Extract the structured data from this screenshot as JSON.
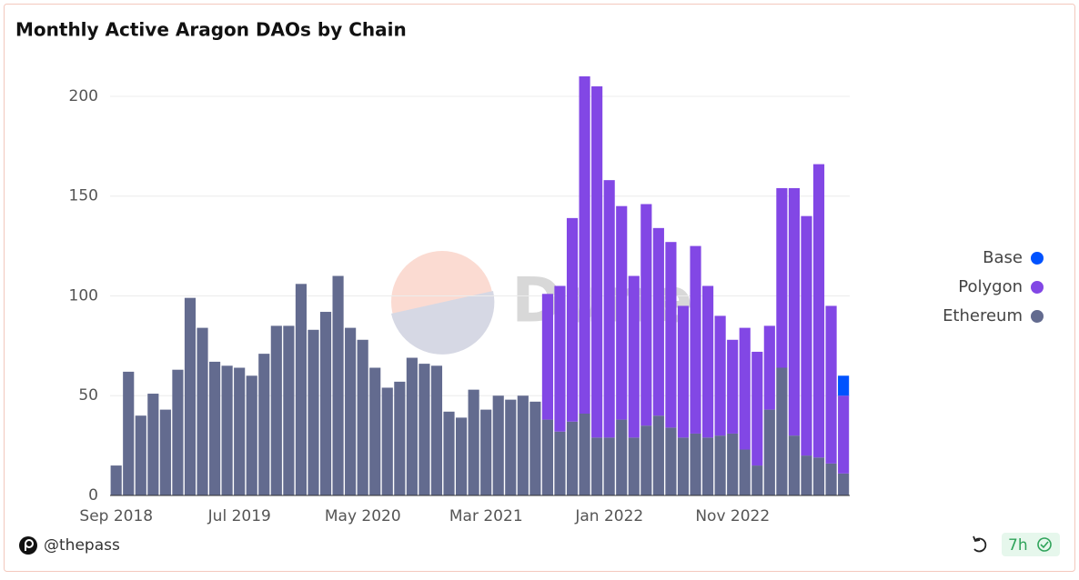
{
  "chart_data": {
    "type": "stacked_bar",
    "title": "Monthly Active Aragon DAOs by Chain",
    "watermark": "Dune",
    "categories": [
      "Sep 2018",
      null,
      null,
      null,
      null,
      null,
      null,
      null,
      null,
      null,
      "Jul 2019",
      null,
      null,
      null,
      null,
      null,
      null,
      null,
      null,
      null,
      "May 2020",
      null,
      null,
      null,
      null,
      null,
      null,
      null,
      null,
      null,
      "Mar 2021",
      null,
      null,
      null,
      null,
      null,
      null,
      null,
      null,
      null,
      "Jan 2022",
      null,
      null,
      null,
      null,
      null,
      null,
      null,
      null,
      null,
      "Nov 2022",
      null,
      null,
      null,
      null,
      null,
      null,
      null,
      null,
      null
    ],
    "series": [
      {
        "name": "Ethereum",
        "color": "#636b8f",
        "values": [
          15,
          62,
          40,
          51,
          43,
          63,
          99,
          84,
          67,
          65,
          64,
          60,
          71,
          85,
          85,
          106,
          83,
          92,
          110,
          84,
          78,
          64,
          54,
          57,
          69,
          66,
          65,
          42,
          39,
          53,
          43,
          50,
          48,
          50,
          47,
          38,
          32,
          37,
          41,
          29,
          29,
          38,
          29,
          35,
          40,
          34,
          29,
          31,
          29,
          30,
          31,
          23,
          15,
          43,
          64,
          30,
          20,
          19,
          16,
          11
        ]
      },
      {
        "name": "Polygon",
        "color": "#8247e5",
        "values": [
          null,
          null,
          null,
          null,
          null,
          null,
          null,
          null,
          null,
          null,
          null,
          null,
          null,
          null,
          null,
          null,
          null,
          null,
          null,
          null,
          null,
          null,
          null,
          null,
          null,
          null,
          null,
          null,
          null,
          null,
          null,
          null,
          null,
          null,
          null,
          63,
          73,
          102,
          169,
          176,
          129,
          107,
          81,
          111,
          94,
          93,
          66,
          94,
          76,
          60,
          47,
          61,
          57,
          42,
          90,
          124,
          120,
          147,
          79,
          39
        ]
      },
      {
        "name": "Base",
        "color": "#0052ff",
        "values": [
          null,
          null,
          null,
          null,
          null,
          null,
          null,
          null,
          null,
          null,
          null,
          null,
          null,
          null,
          null,
          null,
          null,
          null,
          null,
          null,
          null,
          null,
          null,
          null,
          null,
          null,
          null,
          null,
          null,
          null,
          null,
          null,
          null,
          null,
          null,
          null,
          null,
          null,
          null,
          null,
          null,
          null,
          null,
          null,
          null,
          null,
          null,
          null,
          null,
          null,
          null,
          null,
          null,
          null,
          null,
          null,
          null,
          null,
          null,
          10
        ]
      }
    ],
    "ylim": [
      0,
      210
    ],
    "yticks": [
      0,
      50,
      100,
      150,
      200
    ],
    "grid": true,
    "legend": "right",
    "footer": {
      "user": "@thepass",
      "age": "7h"
    }
  }
}
